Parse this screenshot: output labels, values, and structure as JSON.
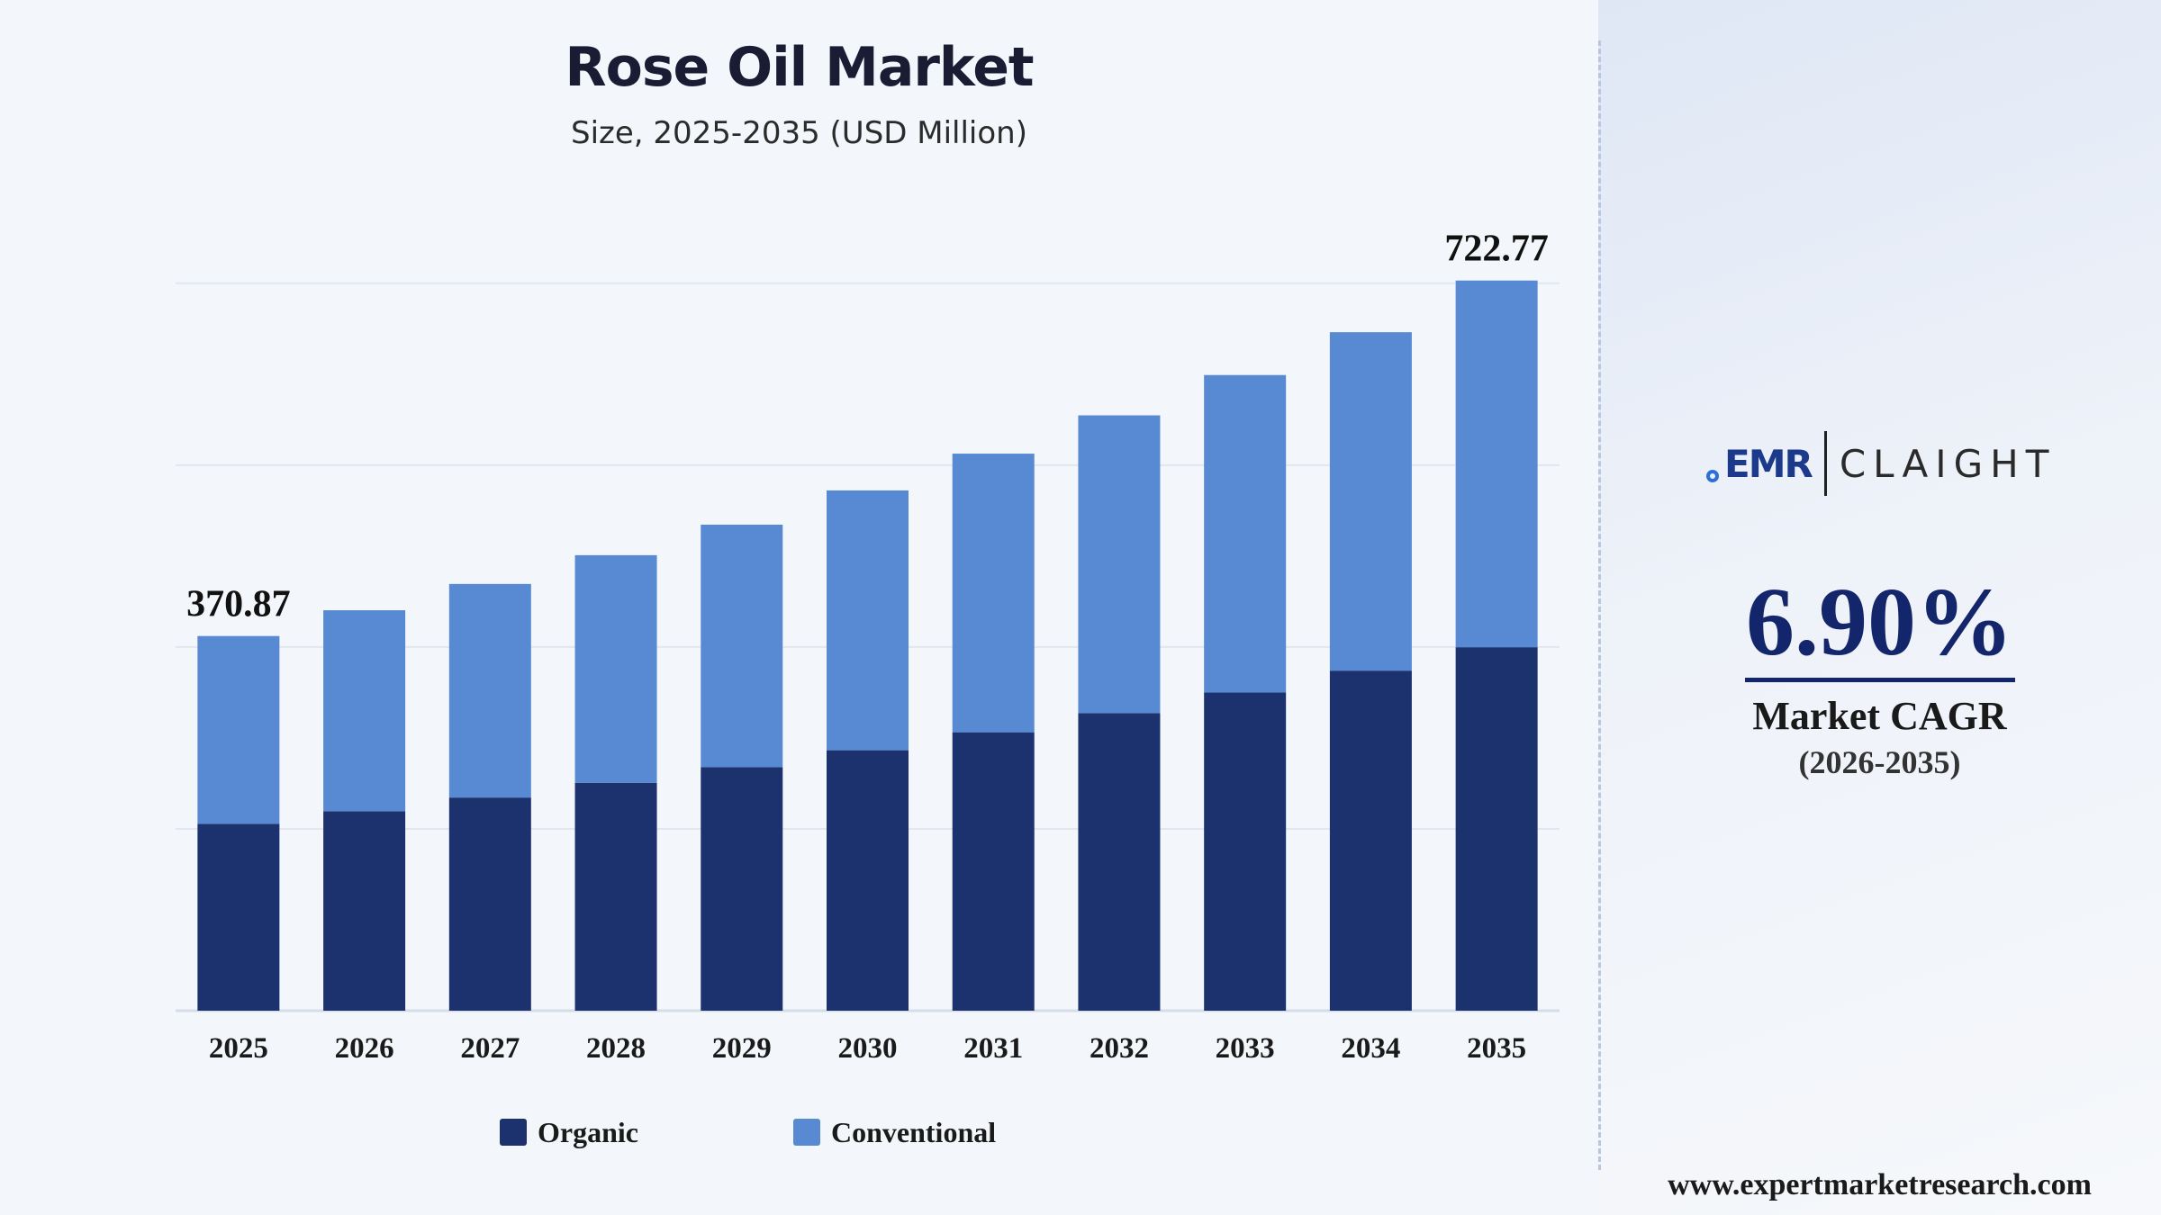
{
  "colors": {
    "organic": "#1c326e",
    "conventional": "#5889d3",
    "gridline": "#e2e7ee",
    "accent": "#14266b"
  },
  "chart_data": {
    "type": "bar",
    "stacked": true,
    "title": "Rose Oil Market",
    "subtitle": "Size, 2025-2035 (USD Million)",
    "categories": [
      "2025",
      "2026",
      "2027",
      "2028",
      "2029",
      "2030",
      "2031",
      "2032",
      "2033",
      "2034",
      "2035"
    ],
    "series": [
      {
        "name": "Organic",
        "values": [
          185.0,
          197.5,
          211.0,
          225.6,
          241.1,
          257.8,
          275.6,
          294.6,
          314.9,
          336.6,
          359.8
        ]
      },
      {
        "name": "Conventional",
        "values": [
          185.87,
          198.9,
          211.4,
          225.3,
          240.0,
          257.2,
          275.8,
          294.7,
          314.3,
          335.0,
          362.97
        ]
      }
    ],
    "totals": [
      370.87,
      396.4,
      422.4,
      450.9,
      481.1,
      515.0,
      551.4,
      589.3,
      629.2,
      671.6,
      722.77
    ],
    "data_labels": [
      {
        "category": "2025",
        "text": "370.87"
      },
      {
        "category": "2035",
        "text": "722.77"
      }
    ],
    "ylim": [
      0,
      800
    ],
    "grid": true,
    "legend_position": "bottom"
  },
  "legend": {
    "items": [
      {
        "label": "Organic"
      },
      {
        "label": "Conventional"
      }
    ]
  },
  "sidebar": {
    "logo_left": "EMR",
    "logo_right": "CLAIGHT",
    "cagr_value": "6.90%",
    "cagr_label": "Market CAGR",
    "cagr_period": "(2026-2035)",
    "website": "www.expertmarketresearch.com"
  }
}
